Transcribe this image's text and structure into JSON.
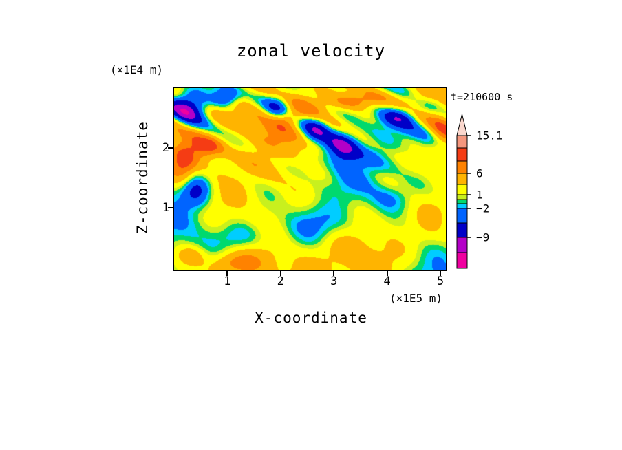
{
  "chart_data": {
    "type": "filled_contour",
    "title": "zonal velocity",
    "x_axis_label": "X-coordinate",
    "x_axis_unit": "(×1E5 m)",
    "y_axis_label": "Z-coordinate",
    "y_axis_unit": "(×1E4 m)",
    "time": "t=210600 s",
    "x_ticks": [
      "1",
      "2",
      "3",
      "4",
      "5"
    ],
    "y_ticks": [
      "1",
      "2"
    ],
    "x_range_1e5_m": [
      0,
      5.1
    ],
    "y_range_1e4_m": [
      0,
      3.0
    ],
    "grid": false,
    "legend_position": "right-colorbar",
    "colorbar": {
      "tick_labels": [
        {
          "text": "15.1",
          "level": 15.1
        },
        {
          "text": "6",
          "level": 6
        },
        {
          "text": "1",
          "level": 1
        },
        {
          "text": "−2",
          "level": -2
        },
        {
          "text": "−9",
          "level": -9
        }
      ],
      "levels": [
        -12,
        -9,
        -5,
        -2,
        -1,
        0,
        1,
        3,
        6,
        9,
        12,
        15.1
      ],
      "colors_low_to_high": [
        "#F000A0",
        "#B400C8",
        "#0000C8",
        "#0064FF",
        "#00CDFF",
        "#00D96E",
        "#C8F01E",
        "#FFFF00",
        "#FFB400",
        "#FF8200",
        "#F53C14",
        "#F5967D",
        "#FAD7CD"
      ]
    }
  }
}
